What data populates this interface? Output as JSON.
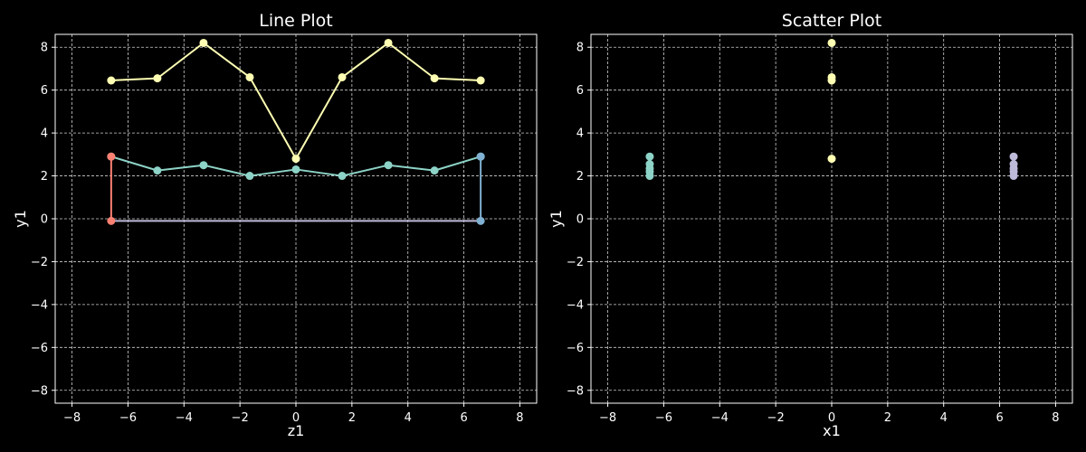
{
  "chart_data": [
    {
      "type": "line",
      "title": "Line Plot",
      "xlabel": "z1",
      "ylabel": "y1",
      "xlim": [
        -8.6,
        8.6
      ],
      "ylim": [
        -8.6,
        8.6
      ],
      "xticks": [
        "−8",
        "−6",
        "−4",
        "−2",
        "0",
        "2",
        "4",
        "6",
        "8"
      ],
      "yticks": [
        "−8",
        "−6",
        "−4",
        "−2",
        "0",
        "2",
        "4",
        "6",
        "8"
      ],
      "grid": true,
      "series": [
        {
          "color": "#ffffb3",
          "x": [
            -6.6,
            -4.95,
            -3.3,
            -1.65,
            0,
            1.65,
            3.3,
            4.95,
            6.6
          ],
          "y": [
            6.45,
            6.55,
            8.2,
            6.6,
            2.8,
            6.6,
            8.2,
            6.55,
            6.45
          ]
        },
        {
          "color": "#8dd3c7",
          "x": [
            -6.6,
            -4.95,
            -3.3,
            -1.65,
            0,
            1.65,
            3.3,
            4.95,
            6.6
          ],
          "y": [
            2.9,
            2.25,
            2.5,
            2.0,
            2.3,
            2.0,
            2.5,
            2.25,
            2.9
          ]
        },
        {
          "color": "#bebada",
          "x": [
            -6.6,
            -4.95,
            -3.3,
            -1.65,
            0,
            1.65,
            3.3,
            4.95,
            6.6
          ],
          "y": [
            -0.1,
            -0.1,
            -0.1,
            -0.1,
            -0.1,
            -0.1,
            -0.1,
            -0.1,
            -0.1
          ],
          "markers": false
        },
        {
          "color": "#fa8072",
          "x": [
            -6.6,
            -6.6
          ],
          "y": [
            -0.1,
            2.9
          ]
        },
        {
          "color": "#80b1d3",
          "x": [
            6.6,
            6.6
          ],
          "y": [
            -0.1,
            2.9
          ]
        }
      ]
    },
    {
      "type": "scatter",
      "title": "Scatter Plot",
      "xlabel": "x1",
      "ylabel": "y1",
      "xlim": [
        -8.6,
        8.6
      ],
      "ylim": [
        -8.6,
        8.6
      ],
      "xticks": [
        "−8",
        "−6",
        "−4",
        "−2",
        "0",
        "2",
        "4",
        "6",
        "8"
      ],
      "yticks": [
        "−8",
        "−6",
        "−4",
        "−2",
        "0",
        "2",
        "4",
        "6",
        "8"
      ],
      "grid": true,
      "series": [
        {
          "color": "#8dd3c7",
          "x": [
            -6.5,
            -6.5,
            -6.5,
            -6.5,
            -6.5
          ],
          "y": [
            2.0,
            2.2,
            2.35,
            2.55,
            2.9
          ]
        },
        {
          "color": "#ffffb3",
          "x": [
            0,
            0,
            0,
            0
          ],
          "y": [
            2.8,
            6.45,
            6.6,
            8.2
          ]
        },
        {
          "color": "#bebada",
          "x": [
            6.5,
            6.5,
            6.5,
            6.5,
            6.5
          ],
          "y": [
            2.0,
            2.2,
            2.35,
            2.55,
            2.9
          ]
        }
      ]
    }
  ]
}
